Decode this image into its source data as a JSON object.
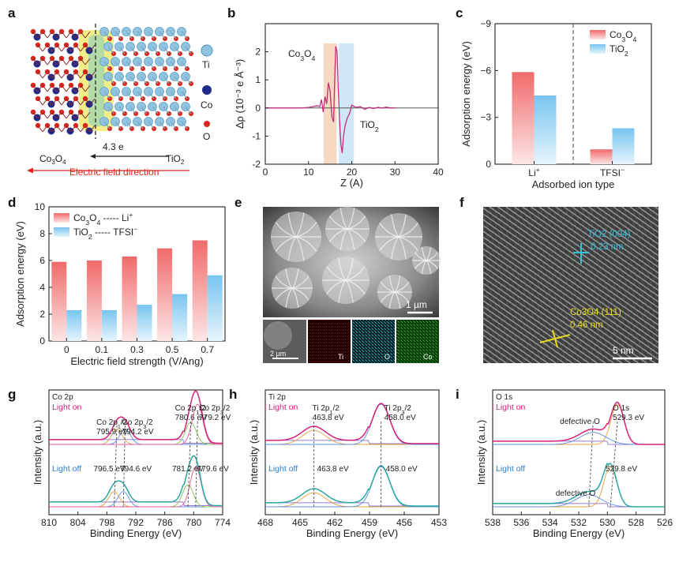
{
  "figure": {
    "panel_labels": [
      "a",
      "b",
      "c",
      "d",
      "e",
      "f",
      "g",
      "h",
      "i"
    ]
  },
  "panel_a": {
    "legend": [
      "Ti",
      "Co",
      "O"
    ],
    "charge_label": "4.3 e",
    "left_material": "Co3O4",
    "right_material": "TiO2",
    "field_label": "Electric field direction",
    "colors": {
      "ti": "#8fc3e0",
      "co": "#1f2a8a",
      "o": "#d8281e",
      "field": "#e0221a",
      "isosurface": "#e5e02a"
    }
  },
  "panel_e": {
    "scale_main": "1 µm",
    "scale_small": "2 µm",
    "maps": [
      "Ti",
      "O",
      "Co"
    ]
  },
  "panel_f": {
    "tio2_label": "TiO2 (004)",
    "tio2_d": "0.23 nm",
    "co3o4_label": "Co3O4 (111)",
    "co3o4_d": "0.46 nm",
    "scale": "5 nm"
  },
  "chart_data": [
    {
      "id": "b",
      "type": "line",
      "xlabel": "Z (A)",
      "ylabel": "Δρ (10⁻³ e Å⁻³)",
      "xlim": [
        0,
        40
      ],
      "ylim": [
        -2,
        3
      ],
      "xticks": [
        0,
        10,
        20,
        30,
        40
      ],
      "yticks": [
        -2,
        -1,
        0,
        1,
        2
      ],
      "annotations": [
        "Co3O4",
        "TiO2"
      ],
      "shaded": [
        {
          "x0": 13.5,
          "x1": 16.5,
          "color": "#f6d9c0"
        },
        {
          "x0": 17,
          "x1": 20.5,
          "color": "#cfe7f7"
        }
      ],
      "x": [
        0,
        8,
        10,
        11,
        12,
        12.6,
        13,
        13.4,
        13.8,
        14.2,
        14.6,
        15,
        15.4,
        15.8,
        16,
        16.3,
        16.6,
        16.9,
        17.2,
        17.5,
        17.8,
        18.1,
        18.5,
        19,
        19.5,
        20,
        21,
        22,
        23,
        24,
        25,
        26,
        27,
        28,
        29,
        30
      ],
      "values": [
        0,
        0,
        0.02,
        0.05,
        0.08,
        0.05,
        0.3,
        -0.15,
        0.4,
        0.15,
        0.9,
        0.6,
        -0.3,
        -0.5,
        0.7,
        2.2,
        2.0,
        0.6,
        -0.5,
        -1.3,
        -1.6,
        -1.0,
        -0.6,
        -0.35,
        -0.2,
        0.1,
        0.02,
        0.05,
        -0.05,
        0.02,
        -0.02,
        0.02,
        0,
        0.03,
        0,
        0
      ],
      "color": "#c0307a"
    },
    {
      "id": "c",
      "type": "bar",
      "xlabel": "Adsorbed ion type",
      "ylabel": "Adsorption energy (eV)",
      "ylim": [
        0,
        -9
      ],
      "yticks": [
        0,
        -3,
        -6,
        -9
      ],
      "categories": [
        "Li+",
        "TFSI−"
      ],
      "series": [
        {
          "name": "Co3O4",
          "values": [
            -5.9,
            -0.95
          ],
          "color": "#f06a6a"
        },
        {
          "name": "TiO2",
          "values": [
            -4.4,
            -2.3
          ],
          "color": "#78c4ef"
        }
      ]
    },
    {
      "id": "d",
      "type": "bar",
      "xlabel": "Electric field strength (V/Ang)",
      "ylabel": "Adsorption energy (eV)",
      "ylim": [
        0,
        10
      ],
      "yticks": [
        0,
        2,
        4,
        6,
        8,
        10
      ],
      "categories": [
        "0",
        "0.1",
        "0.3",
        "0.5",
        "0.7"
      ],
      "series": [
        {
          "name": "Co3O4 ----- Li+",
          "values": [
            5.9,
            6.0,
            6.3,
            6.9,
            7.5
          ],
          "color": "#f06a6a"
        },
        {
          "name": "TiO2 ----- TFSI−",
          "values": [
            2.3,
            2.3,
            2.7,
            3.5,
            4.9
          ],
          "color": "#78c4ef"
        }
      ]
    },
    {
      "id": "g",
      "type": "line",
      "title": "Co 2p",
      "xlabel": "Binding Energy (eV)",
      "ylabel": "Intensity (a.u.)",
      "xlim": [
        810,
        774
      ],
      "xticks": [
        810,
        804,
        798,
        792,
        786,
        780,
        774
      ],
      "series": [
        {
          "name": "Light on",
          "peaks": [
            {
              "x": 795.9,
              "label": "Co 2p1/2\n795.9 eV"
            },
            {
              "x": 794.2,
              "label": "Co 2p3/2\n794.2 eV"
            },
            {
              "x": 780.6,
              "label": "Co 2p1/2\n780.6 eV"
            },
            {
              "x": 779.2,
              "label": "Co 2p3/2\n779.2 eV"
            }
          ],
          "color": "#d6227a"
        },
        {
          "name": "Light off",
          "peaks": [
            {
              "x": 796.5,
              "label": "796.5 eV"
            },
            {
              "x": 794.6,
              "label": "794.6 eV"
            },
            {
              "x": 781.2,
              "label": "781.2 eV"
            },
            {
              "x": 779.6,
              "label": "779.6 eV"
            }
          ],
          "color": "#2aa7a0"
        }
      ]
    },
    {
      "id": "h",
      "type": "line",
      "title": "Ti 2p",
      "xlabel": "Binding Energy (eV)",
      "ylabel": "Intensity (a.u.)",
      "xlim": [
        468,
        453
      ],
      "xticks": [
        468,
        465,
        462,
        459,
        456,
        453
      ],
      "series": [
        {
          "name": "Light on",
          "peaks": [
            {
              "x": 463.8,
              "label": "Ti 2p1/2\n463.8 eV"
            },
            {
              "x": 458.0,
              "label": "Ti 2p3/2\n458.0 eV"
            }
          ],
          "color": "#d6227a"
        },
        {
          "name": "Light off",
          "peaks": [
            {
              "x": 463.8,
              "label": "463.8 eV"
            },
            {
              "x": 458.0,
              "label": "458.0 eV"
            }
          ],
          "color": "#2aa7a0"
        }
      ]
    },
    {
      "id": "i",
      "type": "line",
      "title": "O 1s",
      "xlabel": "Binding Energy (eV)",
      "ylabel": "Intensity (a.u.)",
      "xlim": [
        538,
        526
      ],
      "xticks": [
        538,
        536,
        534,
        532,
        530,
        528,
        526
      ],
      "series": [
        {
          "name": "Light on",
          "peaks": [
            {
              "x": 529.3,
              "label": "O 1s\n529.3 eV"
            },
            {
              "x": 531.0,
              "label": "defective O"
            }
          ],
          "color": "#d6227a"
        },
        {
          "name": "Light off",
          "peaks": [
            {
              "x": 529.8,
              "label": "529.8 eV"
            },
            {
              "x": 531.3,
              "label": "defective O"
            }
          ],
          "color": "#2aa7a0"
        }
      ]
    }
  ]
}
